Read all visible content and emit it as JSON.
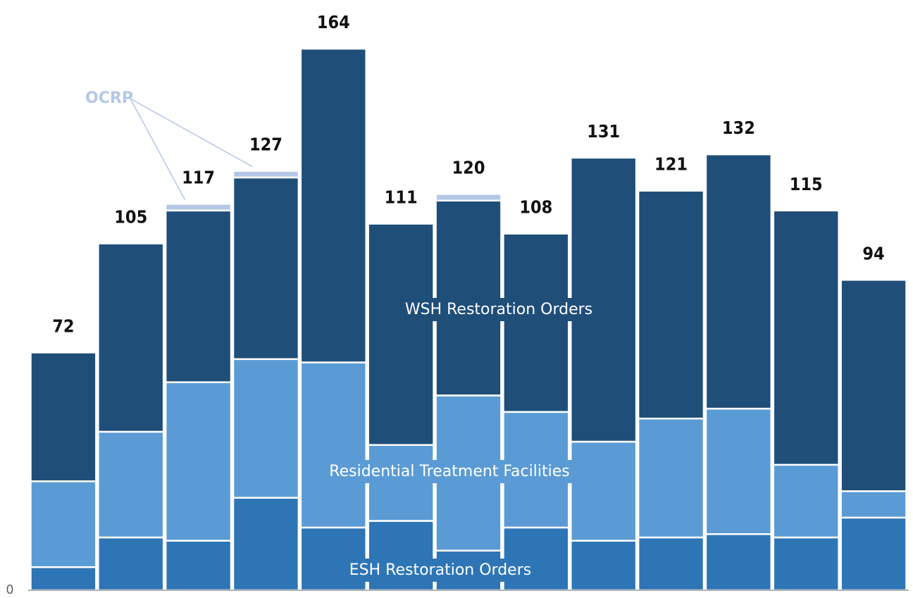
{
  "chart_data": {
    "type": "stacked_bar",
    "categories": [
      null,
      null,
      null,
      null,
      null,
      null,
      null,
      null,
      null,
      null,
      null,
      null,
      null
    ],
    "series": [
      {
        "name": "ESH Restoration Orders",
        "color": "#2e75b6",
        "values": [
          7,
          16,
          15,
          28,
          19,
          21,
          12,
          19,
          15,
          16,
          17,
          16,
          22
        ]
      },
      {
        "name": "Residential Treatment Facilities",
        "color": "#5b9bd5",
        "values": [
          26,
          32,
          48,
          42,
          50,
          23,
          47,
          35,
          30,
          36,
          38,
          22,
          8
        ]
      },
      {
        "name": "WSH Restoration Orders",
        "color": "#1f4e79",
        "values": [
          39,
          57,
          52,
          55,
          95,
          67,
          59,
          54,
          86,
          69,
          77,
          77,
          64
        ]
      },
      {
        "name": "OCRP",
        "color": "#b4c7e7",
        "values": [
          0,
          0,
          2,
          2,
          0,
          0,
          2,
          0,
          0,
          0,
          0,
          0,
          0
        ]
      }
    ],
    "totals": [
      72,
      105,
      117,
      127,
      164,
      111,
      120,
      108,
      131,
      121,
      132,
      115,
      94
    ],
    "ylim": [
      0,
      170
    ],
    "yticks": [
      0
    ]
  }
}
